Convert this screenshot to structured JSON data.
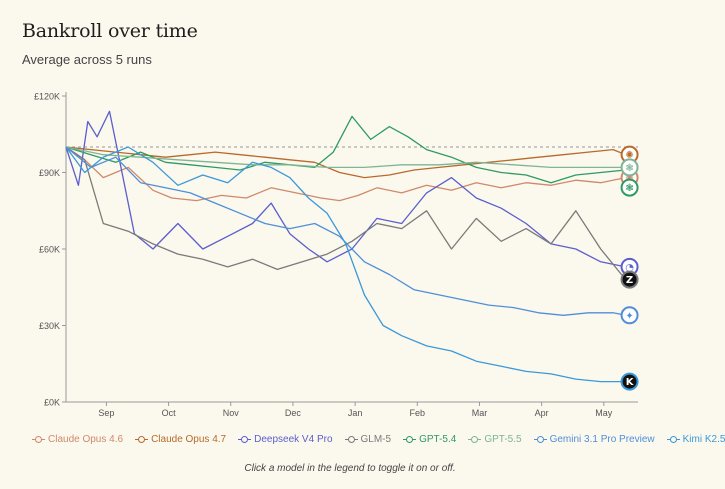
{
  "page": {
    "title": "Bankroll over time",
    "subtitle": "Average across 5 runs",
    "hint": "Click a model in the legend to toggle it on or off."
  },
  "chart_data": {
    "type": "line",
    "title": "Bankroll over time",
    "subtitle": "Average across 5 runs",
    "xlabel": "",
    "ylabel": "",
    "x_ticks": [
      "Sep",
      "Oct",
      "Nov",
      "Dec",
      "Jan",
      "Feb",
      "Mar",
      "Apr",
      "May"
    ],
    "x_tick_index": [
      0.65,
      1.65,
      2.65,
      3.65,
      4.65,
      5.65,
      6.65,
      7.65,
      8.65
    ],
    "x_range": [
      0,
      9.2
    ],
    "y_ticks": [
      0,
      30000,
      60000,
      90000,
      120000
    ],
    "y_tick_labels": [
      "£0K",
      "£30K",
      "£60K",
      "£90K",
      "£120K"
    ],
    "ylim": [
      0,
      120000
    ],
    "reference_line": 100000,
    "grid": false,
    "legend_position": "bottom",
    "series": [
      {
        "name": "Claude Opus 4.6",
        "color": "#d0896a",
        "end_icon": "claude-icon",
        "x": [
          0,
          0.3,
          0.6,
          1.0,
          1.4,
          1.7,
          2.1,
          2.5,
          2.9,
          3.3,
          3.7,
          4.1,
          4.4,
          4.7,
          5.0,
          5.4,
          5.8,
          6.2,
          6.6,
          7.0,
          7.4,
          7.8,
          8.2,
          8.6,
          9.0
        ],
        "values": [
          100000,
          95000,
          88000,
          92000,
          83000,
          80000,
          79000,
          81000,
          80000,
          84000,
          82000,
          80000,
          79000,
          81000,
          84000,
          82000,
          85000,
          83000,
          86000,
          84000,
          86000,
          85000,
          87000,
          86000,
          88000
        ]
      },
      {
        "name": "Claude Opus 4.7",
        "color": "#b86a2c",
        "end_icon": "claude-icon",
        "x": [
          0,
          0.4,
          0.8,
          1.2,
          1.6,
          2.0,
          2.4,
          2.8,
          3.2,
          3.6,
          4.0,
          4.4,
          4.8,
          5.2,
          5.6,
          6.0,
          6.4,
          6.8,
          7.2,
          7.6,
          8.0,
          8.4,
          8.8,
          9.0
        ],
        "values": [
          100000,
          99000,
          98000,
          97000,
          96000,
          97000,
          98000,
          97000,
          96000,
          95000,
          94000,
          90000,
          88000,
          89000,
          91000,
          92000,
          93000,
          94000,
          95000,
          96000,
          97000,
          98000,
          99000,
          97000
        ]
      },
      {
        "name": "Deepseek V4 Pro",
        "color": "#5a5fcc",
        "end_icon": "deepseek-icon",
        "x": [
          0,
          0.2,
          0.35,
          0.5,
          0.7,
          0.9,
          1.1,
          1.4,
          1.8,
          2.2,
          2.6,
          3.0,
          3.3,
          3.6,
          3.9,
          4.2,
          4.6,
          5.0,
          5.4,
          5.8,
          6.2,
          6.6,
          7.0,
          7.4,
          7.8,
          8.2,
          8.6,
          9.0
        ],
        "values": [
          100000,
          85000,
          110000,
          104000,
          114000,
          90000,
          66000,
          60000,
          70000,
          60000,
          65000,
          70000,
          78000,
          66000,
          60000,
          55000,
          60000,
          72000,
          70000,
          82000,
          88000,
          80000,
          76000,
          70000,
          62000,
          60000,
          55000,
          53000
        ]
      },
      {
        "name": "GLM-5",
        "color": "#7a7a7a",
        "end_icon": "zhipu-icon",
        "x": [
          0,
          0.3,
          0.6,
          1.0,
          1.4,
          1.8,
          2.2,
          2.6,
          3.0,
          3.4,
          3.8,
          4.2,
          4.6,
          5.0,
          5.4,
          5.8,
          6.2,
          6.6,
          7.0,
          7.4,
          7.8,
          8.2,
          8.6,
          9.0
        ],
        "values": [
          100000,
          95000,
          70000,
          67000,
          62000,
          58000,
          56000,
          53000,
          56000,
          52000,
          55000,
          58000,
          63000,
          70000,
          68000,
          75000,
          60000,
          72000,
          63000,
          68000,
          62000,
          75000,
          60000,
          48000
        ]
      },
      {
        "name": "GPT-5.4",
        "color": "#2f9a63",
        "end_icon": "openai-icon",
        "x": [
          0,
          0.4,
          0.8,
          1.2,
          1.6,
          2.0,
          2.4,
          2.8,
          3.2,
          3.6,
          4.0,
          4.3,
          4.6,
          4.9,
          5.2,
          5.5,
          5.8,
          6.2,
          6.6,
          7.0,
          7.4,
          7.8,
          8.2,
          8.6,
          9.0
        ],
        "values": [
          100000,
          97000,
          94000,
          98000,
          94000,
          93000,
          92000,
          91000,
          94000,
          93000,
          92000,
          98000,
          112000,
          103000,
          108000,
          104000,
          99000,
          96000,
          92000,
          90000,
          89000,
          86000,
          89000,
          90000,
          91000
        ]
      },
      {
        "name": "GPT-5.5",
        "color": "#7fb596",
        "end_icon": "openai-icon",
        "x": [
          0,
          0.6,
          1.2,
          1.8,
          2.4,
          3.0,
          3.6,
          4.2,
          4.8,
          5.4,
          6.0,
          6.6,
          7.2,
          7.8,
          8.4,
          9.0
        ],
        "values": [
          100000,
          97000,
          96000,
          95000,
          94000,
          93000,
          93000,
          92000,
          92000,
          93000,
          93000,
          94000,
          93000,
          92000,
          92000,
          92000
        ]
      },
      {
        "name": "Gemini 3.1 Pro Preview",
        "color": "#4f8fd8",
        "end_icon": "gemini-icon",
        "x": [
          0,
          0.4,
          0.8,
          1.2,
          1.6,
          2.0,
          2.4,
          2.8,
          3.2,
          3.6,
          4.0,
          4.4,
          4.8,
          5.2,
          5.6,
          6.0,
          6.4,
          6.8,
          7.2,
          7.6,
          8.0,
          8.4,
          8.8,
          9.0
        ],
        "values": [
          100000,
          92000,
          96000,
          86000,
          84000,
          82000,
          78000,
          74000,
          70000,
          68000,
          70000,
          65000,
          55000,
          50000,
          44000,
          42000,
          40000,
          38000,
          37000,
          35000,
          34000,
          35000,
          35000,
          34000
        ]
      },
      {
        "name": "Kimi K2.5",
        "color": "#3a99d9",
        "end_icon": "kimi-icon",
        "x": [
          0,
          0.3,
          0.6,
          1.0,
          1.4,
          1.8,
          2.2,
          2.6,
          3.0,
          3.3,
          3.6,
          3.9,
          4.2,
          4.5,
          4.8,
          5.1,
          5.4,
          5.8,
          6.2,
          6.6,
          7.0,
          7.4,
          7.8,
          8.2,
          8.6,
          9.0
        ],
        "values": [
          100000,
          90000,
          96000,
          100000,
          94000,
          85000,
          89000,
          86000,
          94000,
          92000,
          88000,
          80000,
          74000,
          62000,
          42000,
          30000,
          26000,
          22000,
          20000,
          16000,
          14000,
          12000,
          11000,
          9000,
          8000,
          8000
        ]
      }
    ]
  }
}
